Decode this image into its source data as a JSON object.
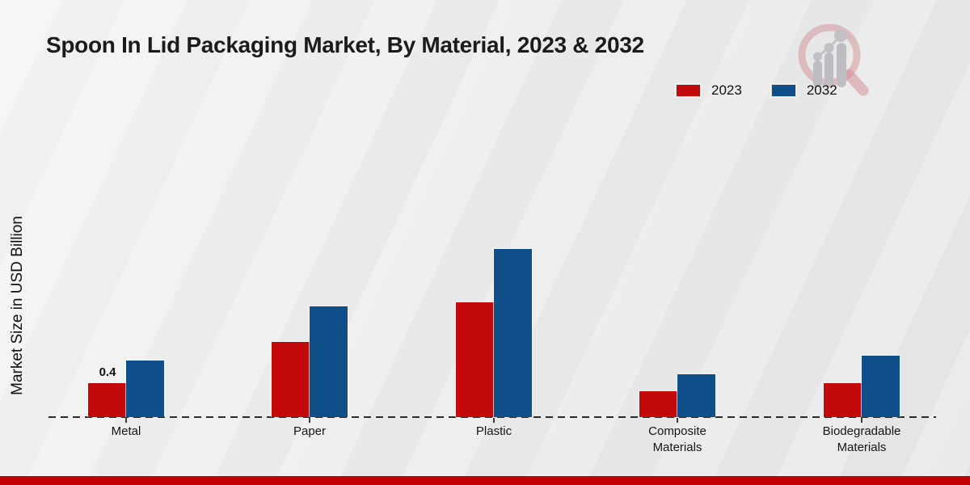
{
  "title": "Spoon In Lid Packaging Market, By Material, 2023 & 2032",
  "chart_data": {
    "type": "bar",
    "categories": [
      "Metal",
      "Paper",
      "Plastic",
      "Composite Materials",
      "Biodegradable Materials"
    ],
    "series": [
      {
        "name": "2023",
        "color": "#C30909",
        "values": [
          0.4,
          0.89,
          1.35,
          0.3,
          0.4
        ]
      },
      {
        "name": "2032",
        "color": "#0F4E89",
        "values": [
          0.67,
          1.3,
          1.98,
          0.5,
          0.72
        ]
      }
    ],
    "title": "Spoon In Lid Packaging Market, By Material, 2023 & 2032",
    "xlabel": "",
    "ylabel": "Market Size in USD Billion",
    "ylim": [
      0,
      2.2
    ],
    "grid": false,
    "legend_position": "top-right",
    "baseline_style": "dashed",
    "data_labels": [
      {
        "series": "2023",
        "category": "Metal",
        "text": "0.4"
      }
    ]
  },
  "footer": {
    "accent_color": "#C00000"
  },
  "logo": {
    "name": "market-research-future-watermark"
  }
}
